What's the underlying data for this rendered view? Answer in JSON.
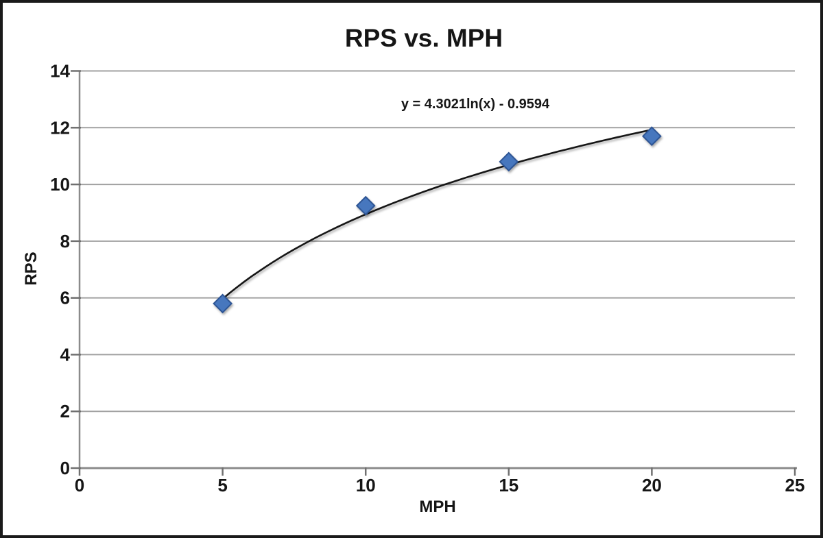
{
  "colors": {
    "background": "#FFFFFF",
    "frame_border": "#1A1A1A",
    "gridline": "#A1A1A1",
    "axis": "#8B8B8B",
    "tick": "#707070",
    "text": "#161616",
    "trendline": "#161616",
    "marker_fill": "#4677BE",
    "marker_border": "#2D5494"
  },
  "chart_data": {
    "type": "scatter",
    "title": "RPS vs. MPH",
    "xlabel": "MPH",
    "ylabel": "RPS",
    "x": [
      5,
      10,
      15,
      20
    ],
    "series": [
      {
        "name": "RPS",
        "values": [
          5.8,
          9.25,
          10.8,
          11.7
        ]
      }
    ],
    "xlim": [
      0,
      25
    ],
    "ylim": [
      0,
      14
    ],
    "x_ticks": [
      0,
      5,
      10,
      15,
      20,
      25
    ],
    "y_ticks": [
      0,
      2,
      4,
      6,
      8,
      10,
      12,
      14
    ],
    "grid": "horizontal",
    "legend": "none",
    "trendline": {
      "type": "logarithmic",
      "a": 4.3021,
      "b": -0.9594,
      "label": "y = 4.3021ln(x) - 0.9594",
      "x_range": [
        5,
        20
      ]
    }
  }
}
